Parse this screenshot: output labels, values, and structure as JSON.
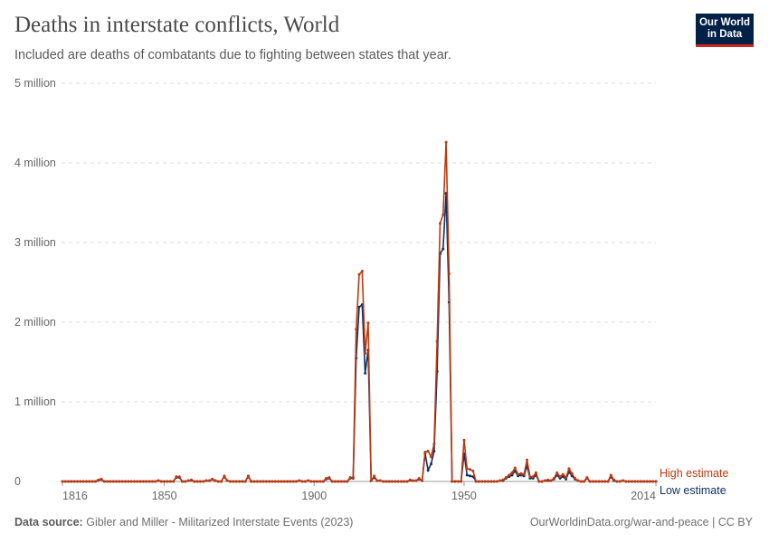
{
  "title": "Deaths in interstate conflicts, World",
  "subtitle": "Included are deaths of combatants due to fighting between states that year.",
  "logo": {
    "line1": "Our World",
    "line2": "in Data"
  },
  "footer": {
    "source_label": "Data source:",
    "source": "Gibler and Miller - Militarized Interstate Events (2023)",
    "link": "OurWorldinData.org/war-and-peace | CC BY"
  },
  "chart_data": {
    "type": "line",
    "title": "Deaths in interstate conflicts, World",
    "x_start": 1816,
    "x_end": 2014,
    "xlim": [
      1816,
      2014
    ],
    "ylim": [
      0,
      5000000
    ],
    "x_ticks": [
      1816,
      1850,
      1900,
      1950,
      2014
    ],
    "x_tick_labels": [
      "1816",
      "1850",
      "1900",
      "1950",
      "2014"
    ],
    "y_ticks": [
      0,
      1000000,
      2000000,
      3000000,
      4000000,
      5000000
    ],
    "y_tick_labels": [
      "0",
      "1 million",
      "2 million",
      "3 million",
      "4 million",
      "5 million"
    ],
    "grid": "horizontal dashed",
    "legend_placement": "right end labels",
    "value_unit": "million",
    "series": [
      {
        "name": "Low estimate",
        "color": "#0e3164",
        "values": [
          0,
          0,
          0,
          0,
          0,
          0,
          0,
          0,
          0,
          0,
          0,
          0,
          0.015,
          0.025,
          0,
          0,
          0,
          0,
          0,
          0,
          0,
          0,
          0,
          0,
          0,
          0,
          0,
          0,
          0,
          0,
          0,
          0,
          0.01,
          0,
          0,
          0,
          0,
          0,
          0.05,
          0.05,
          0,
          0,
          0.01,
          0.015,
          0,
          0,
          0,
          0,
          0.01,
          0.01,
          0.025,
          0.01,
          0,
          0,
          0.06,
          0.01,
          0,
          0,
          0,
          0,
          0,
          0,
          0.06,
          0,
          0,
          0,
          0,
          0,
          0,
          0,
          0,
          0,
          0,
          0,
          0,
          0,
          0,
          0,
          0,
          0.01,
          0,
          0,
          0.01,
          0,
          0,
          0,
          0,
          0,
          0.03,
          0.04,
          0,
          0,
          0,
          0,
          0,
          0,
          0.04,
          0.04,
          1.55,
          2.19,
          2.22,
          1.36,
          1.65,
          0.01,
          0.05,
          0.01,
          0.01,
          0,
          0,
          0,
          0,
          0,
          0,
          0,
          0,
          0,
          0.015,
          0.01,
          0.01,
          0.03,
          0.01,
          0.35,
          0.14,
          0.22,
          0.38,
          1.38,
          2.86,
          2.92,
          3.62,
          2.25,
          0,
          0,
          0,
          0,
          0.35,
          0.08,
          0.07,
          0.06,
          0,
          0,
          0,
          0,
          0,
          0,
          0,
          0,
          0.01,
          0.01,
          0.04,
          0.06,
          0.08,
          0.13,
          0.07,
          0.08,
          0.07,
          0.2,
          0.04,
          0.04,
          0.08,
          0,
          0,
          0.01,
          0.01,
          0.01,
          0.03,
          0.08,
          0.04,
          0.06,
          0.03,
          0.12,
          0.07,
          0.03,
          0.01,
          0,
          0,
          0.04,
          0,
          0,
          0,
          0,
          0,
          0,
          0,
          0.06,
          0.01,
          0,
          0,
          0.01,
          0,
          0,
          0,
          0,
          0,
          0,
          0,
          0,
          0,
          0,
          0
        ]
      },
      {
        "name": "High estimate",
        "color": "#be3a0e",
        "values": [
          0,
          0,
          0,
          0,
          0,
          0,
          0,
          0,
          0,
          0,
          0,
          0,
          0.02,
          0.03,
          0,
          0,
          0,
          0,
          0,
          0,
          0,
          0,
          0,
          0,
          0,
          0,
          0,
          0,
          0,
          0,
          0,
          0,
          0.01,
          0,
          0,
          0,
          0,
          0,
          0.06,
          0.06,
          0,
          0,
          0.01,
          0.02,
          0,
          0,
          0,
          0,
          0.01,
          0.01,
          0.03,
          0.01,
          0,
          0,
          0.07,
          0.01,
          0,
          0,
          0,
          0,
          0,
          0,
          0.07,
          0,
          0,
          0,
          0,
          0,
          0,
          0,
          0,
          0,
          0,
          0,
          0,
          0,
          0,
          0,
          0,
          0.01,
          0,
          0,
          0.01,
          0,
          0,
          0,
          0,
          0,
          0.04,
          0.05,
          0,
          0,
          0,
          0,
          0,
          0,
          0.05,
          0.05,
          1.91,
          2.6,
          2.64,
          1.61,
          1.99,
          0.01,
          0.07,
          0.01,
          0.01,
          0,
          0,
          0,
          0,
          0,
          0,
          0,
          0,
          0,
          0.02,
          0.01,
          0.01,
          0.04,
          0.01,
          0.37,
          0.38,
          0.31,
          0.47,
          1.76,
          3.24,
          3.35,
          4.26,
          2.61,
          0,
          0,
          0,
          0,
          0.52,
          0.16,
          0.15,
          0.13,
          0,
          0,
          0,
          0,
          0,
          0,
          0,
          0,
          0.01,
          0.02,
          0.05,
          0.08,
          0.11,
          0.17,
          0.09,
          0.1,
          0.09,
          0.27,
          0.06,
          0.06,
          0.11,
          0,
          0,
          0.01,
          0.02,
          0.01,
          0.04,
          0.11,
          0.06,
          0.09,
          0.05,
          0.16,
          0.1,
          0.04,
          0.01,
          0,
          0,
          0.05,
          0,
          0,
          0,
          0,
          0,
          0,
          0,
          0.08,
          0.02,
          0,
          0,
          0.01,
          0,
          0,
          0,
          0,
          0,
          0,
          0,
          0,
          0,
          0,
          0
        ]
      }
    ]
  }
}
